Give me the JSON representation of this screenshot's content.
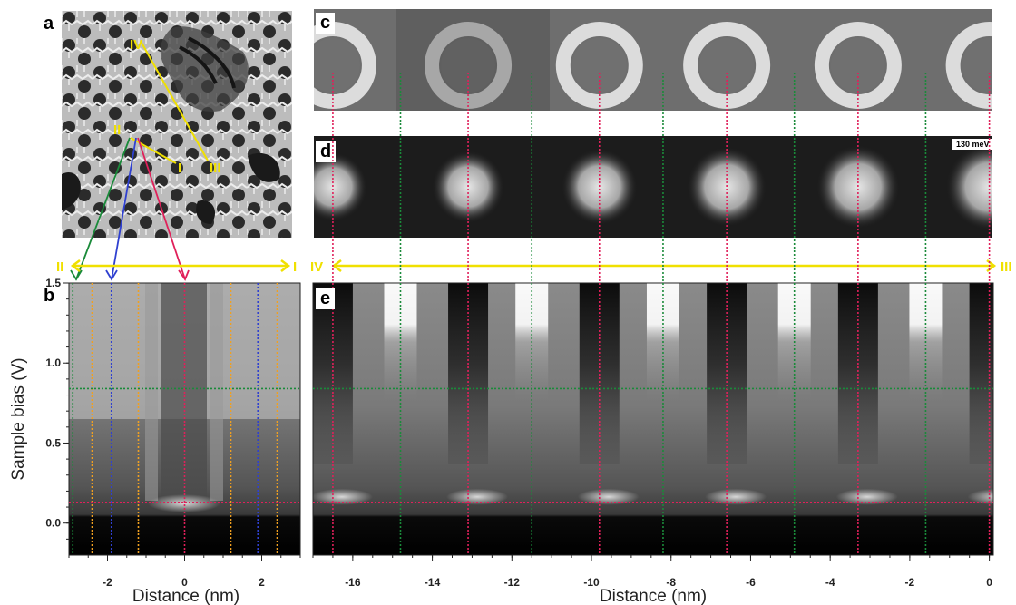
{
  "panels": {
    "a": {
      "label": "a",
      "markers": [
        "IV",
        "II",
        "I",
        "III"
      ]
    },
    "b": {
      "label": "b",
      "line_start": "II",
      "line_end": "I"
    },
    "c": {
      "label": "c"
    },
    "d": {
      "label": "d",
      "energy": "130 meV"
    },
    "e": {
      "label": "e",
      "line_start": "IV",
      "line_end": "III"
    }
  },
  "colors": {
    "marker_yellow": "#f0e000",
    "green_line": "#1a8a3a",
    "red_line": "#e0205a",
    "blue_line": "#2f40d0",
    "orange_line": "#f0a020"
  },
  "axes": {
    "b": {
      "ylabel": "Sample bias (V)",
      "xlabel": "Distance (nm)",
      "yticks": [
        "1.5",
        "1.0",
        "0.5",
        "0.0"
      ],
      "xticks": [
        "-2",
        "0",
        "2"
      ]
    },
    "e": {
      "xlabel": "Distance (nm)",
      "xticks": [
        "-16",
        "-14",
        "-12",
        "-10",
        "-8",
        "-6",
        "-4",
        "-2",
        "0"
      ]
    }
  },
  "chart_data": [
    {
      "type": "heatmap",
      "panel": "b",
      "xlabel": "Distance (nm)",
      "ylabel": "Sample bias (V)",
      "xlim": [
        -3,
        3
      ],
      "ylim": [
        -0.2,
        1.5
      ],
      "vertical_markers": {
        "green": [
          -2.9
        ],
        "blue": [
          -1.9,
          1.9
        ],
        "red": [
          0.0
        ],
        "orange": [
          -2.4,
          -1.2,
          1.2,
          2.4
        ]
      },
      "horizontal_markers": {
        "green": [
          0.84
        ],
        "red": [
          0.13
        ]
      }
    },
    {
      "type": "heatmap",
      "panel": "e",
      "xlabel": "Distance (nm)",
      "xlim": [
        -17.0,
        0.1
      ],
      "ylim": [
        -0.2,
        1.5
      ],
      "vertical_markers": {
        "red": [
          -16.5,
          -13.1,
          -9.8,
          -6.6,
          -3.3,
          0.0
        ],
        "green": [
          -14.8,
          -11.5,
          -8.2,
          -4.9,
          -1.6
        ]
      },
      "horizontal_markers": {
        "green": [
          0.84
        ],
        "red": [
          0.13
        ]
      }
    }
  ]
}
